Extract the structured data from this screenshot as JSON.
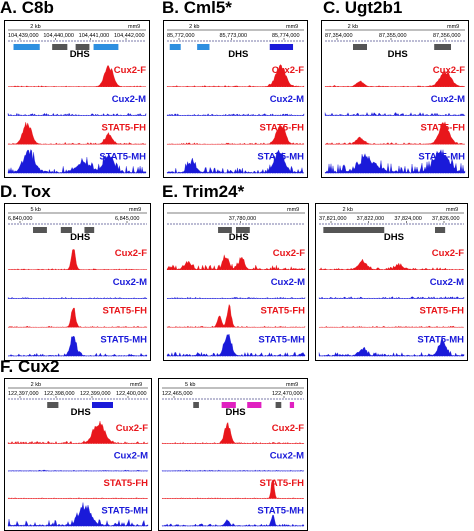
{
  "figure": {
    "panels": [
      {
        "id": "A",
        "title": "A. C8b",
        "ruler": {
          "scale_label": "2 kb",
          "assembly": "mm9",
          "positions": [
            "104,439,000",
            "104,440,000",
            "104,441,000",
            "104,442,000"
          ]
        },
        "dhs_label": "DHS",
        "dhs_marks": [
          {
            "start": 0.04,
            "end": 0.23,
            "color": "#2e8fe0"
          },
          {
            "start": 0.32,
            "end": 0.43,
            "color": "#555555"
          },
          {
            "start": 0.49,
            "end": 0.59,
            "color": "#555555"
          },
          {
            "start": 0.62,
            "end": 0.8,
            "color": "#2e8fe0"
          }
        ],
        "tracks": [
          {
            "label": "Cux2-F",
            "color": "#e8161b",
            "peaks": [
              {
                "pos": 0.73,
                "height": 0.95,
                "width": 0.06
              }
            ],
            "noise": 0.04
          },
          {
            "label": "Cux2-M",
            "color": "#1a1ad9",
            "peaks": [],
            "noise": 0.1
          },
          {
            "label": "STAT5-FH",
            "color": "#e8161b",
            "peaks": [
              {
                "pos": 0.14,
                "height": 0.95,
                "width": 0.06
              },
              {
                "pos": 0.73,
                "height": 0.45,
                "width": 0.05
              }
            ],
            "noise": 0.08
          },
          {
            "label": "STAT5-MH",
            "color": "#1a1ad9",
            "peaks": [
              {
                "pos": 0.15,
                "height": 0.9,
                "width": 0.08
              },
              {
                "pos": 0.55,
                "height": 0.45,
                "width": 0.1
              },
              {
                "pos": 0.73,
                "height": 0.8,
                "width": 0.07
              }
            ],
            "noise": 0.3
          }
        ]
      },
      {
        "id": "B",
        "title": "B. Cml5*",
        "ruler": {
          "scale_label": "2 kb",
          "assembly": "mm9",
          "positions": [
            "85,772,000",
            "85,773,000",
            "85,774,000"
          ]
        },
        "dhs_label": "DHS",
        "dhs_marks": [
          {
            "start": 0.02,
            "end": 0.1,
            "color": "#2e8fe0"
          },
          {
            "start": 0.22,
            "end": 0.31,
            "color": "#2e8fe0"
          },
          {
            "start": 0.75,
            "end": 0.92,
            "color": "#1a1ad9"
          }
        ],
        "tracks": [
          {
            "label": "Cux2-F",
            "color": "#e8161b",
            "peaks": [
              {
                "pos": 0.83,
                "height": 0.95,
                "width": 0.07
              }
            ],
            "noise": 0.05
          },
          {
            "label": "Cux2-M",
            "color": "#1a1ad9",
            "peaks": [],
            "noise": 0.08
          },
          {
            "label": "STAT5-FH",
            "color": "#e8161b",
            "peaks": [
              {
                "pos": 0.83,
                "height": 0.95,
                "width": 0.06
              }
            ],
            "noise": 0.06
          },
          {
            "label": "STAT5-MH",
            "color": "#1a1ad9",
            "peaks": [
              {
                "pos": 0.18,
                "height": 0.4,
                "width": 0.06
              },
              {
                "pos": 0.82,
                "height": 0.95,
                "width": 0.07
              }
            ],
            "noise": 0.25
          }
        ]
      },
      {
        "id": "C",
        "title": "C. Ugt2b1",
        "ruler": {
          "scale_label": "2 kb",
          "assembly": "mm9",
          "positions": [
            "87,354,000",
            "87,355,000",
            "87,356,000"
          ]
        },
        "dhs_label": "DHS",
        "dhs_marks": [
          {
            "start": 0.2,
            "end": 0.3,
            "color": "#555555"
          },
          {
            "start": 0.78,
            "end": 0.9,
            "color": "#555555"
          }
        ],
        "tracks": [
          {
            "label": "Cux2-F",
            "color": "#e8161b",
            "peaks": [
              {
                "pos": 0.86,
                "height": 0.65,
                "width": 0.08
              },
              {
                "pos": 0.25,
                "height": 0.25,
                "width": 0.05
              }
            ],
            "noise": 0.06
          },
          {
            "label": "Cux2-M",
            "color": "#1a1ad9",
            "peaks": [],
            "noise": 0.12
          },
          {
            "label": "STAT5-FH",
            "color": "#e8161b",
            "peaks": [
              {
                "pos": 0.85,
                "height": 0.95,
                "width": 0.07
              },
              {
                "pos": 0.25,
                "height": 0.3,
                "width": 0.05
              }
            ],
            "noise": 0.07
          },
          {
            "label": "STAT5-MH",
            "color": "#1a1ad9",
            "peaks": [
              {
                "pos": 0.83,
                "height": 0.95,
                "width": 0.1
              },
              {
                "pos": 0.3,
                "height": 0.55,
                "width": 0.12
              }
            ],
            "noise": 0.4
          }
        ]
      },
      {
        "id": "D",
        "title": "D.  Tox",
        "ruler": {
          "scale_label": "5 kb",
          "assembly": "mm9",
          "positions": [
            "6,840,000",
            "6,845,000"
          ]
        },
        "dhs_label": "DHS",
        "dhs_marks": [
          {
            "start": 0.18,
            "end": 0.28,
            "color": "#555555"
          },
          {
            "start": 0.38,
            "end": 0.46,
            "color": "#555555"
          },
          {
            "start": 0.55,
            "end": 0.62,
            "color": "#555555"
          }
        ],
        "tracks": [
          {
            "label": "Cux2-F",
            "color": "#e8161b",
            "peaks": [
              {
                "pos": 0.47,
                "height": 0.95,
                "width": 0.03
              }
            ],
            "noise": 0.04
          },
          {
            "label": "Cux2-M",
            "color": "#1a1ad9",
            "peaks": [],
            "noise": 0.05
          },
          {
            "label": "STAT5-FH",
            "color": "#e8161b",
            "peaks": [
              {
                "pos": 0.47,
                "height": 0.95,
                "width": 0.03
              }
            ],
            "noise": 0.04
          },
          {
            "label": "STAT5-MH",
            "color": "#1a1ad9",
            "peaks": [
              {
                "pos": 0.47,
                "height": 0.95,
                "width": 0.04
              }
            ],
            "noise": 0.12
          }
        ]
      },
      {
        "id": "E",
        "title": "E.  Trim24*",
        "ruler": {
          "scale_label": "",
          "assembly": "mm9",
          "positions": [
            "37,780,000"
          ]
        },
        "dhs_label": "DHS",
        "dhs_marks": [
          {
            "start": 0.37,
            "end": 0.47,
            "color": "#555555"
          },
          {
            "start": 0.5,
            "end": 0.6,
            "color": "#555555"
          }
        ],
        "tracks": [
          {
            "label": "Cux2-F",
            "color": "#e8161b",
            "peaks": [
              {
                "pos": 0.43,
                "height": 0.6,
                "width": 0.04
              },
              {
                "pos": 0.54,
                "height": 0.5,
                "width": 0.04
              },
              {
                "pos": 0.15,
                "height": 0.3,
                "width": 0.05
              }
            ],
            "noise": 0.2
          },
          {
            "label": "Cux2-M",
            "color": "#1a1ad9",
            "peaks": [],
            "noise": 0.05
          },
          {
            "label": "STAT5-FH",
            "color": "#e8161b",
            "peaks": [
              {
                "pos": 0.45,
                "height": 0.95,
                "width": 0.03
              },
              {
                "pos": 0.38,
                "height": 0.5,
                "width": 0.03
              }
            ],
            "noise": 0.05
          },
          {
            "label": "STAT5-MH",
            "color": "#1a1ad9",
            "peaks": [
              {
                "pos": 0.44,
                "height": 0.95,
                "width": 0.05
              }
            ],
            "noise": 0.15
          }
        ]
      },
      {
        "id": "E2",
        "title": "",
        "ruler": {
          "scale_label": "2 kb",
          "assembly": "mm9",
          "positions": [
            "37,821,000",
            "37,822,000",
            "37,824,000",
            "37,826,000"
          ]
        },
        "dhs_label": "DHS",
        "dhs_marks": [
          {
            "start": 0.03,
            "end": 0.45,
            "color": "#555555"
          },
          {
            "start": 0.8,
            "end": 0.87,
            "color": "#555555"
          }
        ],
        "tracks": [
          {
            "label": "Cux2-F",
            "color": "#e8161b",
            "peaks": [
              {
                "pos": 0.3,
                "height": 0.35,
                "width": 0.06
              },
              {
                "pos": 0.55,
                "height": 0.2,
                "width": 0.05
              }
            ],
            "noise": 0.1
          },
          {
            "label": "Cux2-M",
            "color": "#1a1ad9",
            "peaks": [],
            "noise": 0.08
          },
          {
            "label": "STAT5-FH",
            "color": "#e8161b",
            "peaks": [],
            "noise": 0.05
          },
          {
            "label": "STAT5-MH",
            "color": "#1a1ad9",
            "peaks": [
              {
                "pos": 0.85,
                "height": 0.7,
                "width": 0.05
              },
              {
                "pos": 0.3,
                "height": 0.3,
                "width": 0.05
              }
            ],
            "noise": 0.15
          }
        ]
      },
      {
        "id": "F",
        "title": "F.  Cux2",
        "ruler": {
          "scale_label": "2 kb",
          "assembly": "mm9",
          "positions": [
            "122,397,000",
            "122,398,000",
            "122,399,000",
            "122,400,000"
          ]
        },
        "dhs_label": "DHS",
        "dhs_marks": [
          {
            "start": 0.28,
            "end": 0.36,
            "color": "#555555"
          },
          {
            "start": 0.6,
            "end": 0.75,
            "color": "#1a1ad9"
          }
        ],
        "tracks": [
          {
            "label": "Cux2-F",
            "color": "#e8161b",
            "peaks": [
              {
                "pos": 0.65,
                "height": 0.95,
                "width": 0.08
              }
            ],
            "noise": 0.1
          },
          {
            "label": "Cux2-M",
            "color": "#1a1ad9",
            "peaks": [],
            "noise": 0.04
          },
          {
            "label": "STAT5-FH",
            "color": "#e8161b",
            "peaks": [],
            "noise": 0.03
          },
          {
            "label": "STAT5-MH",
            "color": "#1a1ad9",
            "peaks": [
              {
                "pos": 0.55,
                "height": 0.9,
                "width": 0.08
              }
            ],
            "noise": 0.3
          }
        ]
      },
      {
        "id": "F2",
        "title": "",
        "ruler": {
          "scale_label": "5 kb",
          "assembly": "mm9",
          "positions": [
            "122,465,000",
            "122,470,000"
          ]
        },
        "dhs_label": "DHS",
        "dhs_marks": [
          {
            "start": 0.22,
            "end": 0.26,
            "color": "#555555"
          },
          {
            "start": 0.42,
            "end": 0.52,
            "color": "#e020c0"
          },
          {
            "start": 0.6,
            "end": 0.7,
            "color": "#e020c0"
          },
          {
            "start": 0.8,
            "end": 0.84,
            "color": "#555555"
          },
          {
            "start": 0.9,
            "end": 0.93,
            "color": "#e020c0"
          }
        ],
        "tracks": [
          {
            "label": "Cux2-F",
            "color": "#e8161b",
            "peaks": [
              {
                "pos": 0.46,
                "height": 0.95,
                "width": 0.04
              }
            ],
            "noise": 0.05
          },
          {
            "label": "Cux2-M",
            "color": "#1a1ad9",
            "peaks": [],
            "noise": 0.04
          },
          {
            "label": "STAT5-FH",
            "color": "#e8161b",
            "peaks": [
              {
                "pos": 0.78,
                "height": 0.95,
                "width": 0.02
              }
            ],
            "noise": 0.03
          },
          {
            "label": "STAT5-MH",
            "color": "#1a1ad9",
            "peaks": [
              {
                "pos": 0.78,
                "height": 0.5,
                "width": 0.02
              },
              {
                "pos": 0.46,
                "height": 0.3,
                "width": 0.03
              }
            ],
            "noise": 0.1
          }
        ]
      }
    ]
  }
}
